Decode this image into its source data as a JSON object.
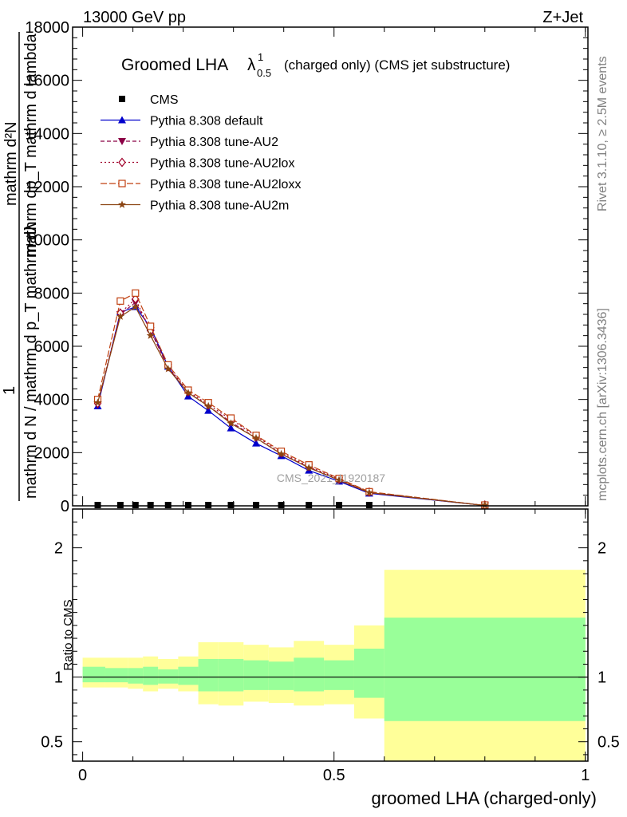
{
  "header": {
    "left": "13000 GeV pp",
    "right": "Z+Jet",
    "side_top": "Rivet 3.1.10, ≥ 2.5M events",
    "side_bottom": "mcplots.cern.ch [arXiv:1306.3436]",
    "watermark": "CMS_2021_I1920187"
  },
  "main_title": {
    "prefix": "Groomed LHA",
    "lambda": "λ",
    "sup": "1",
    "sub": "0.5",
    "suffix": "(charged only) (CMS jet substructure)"
  },
  "y_label": {
    "top": "mathrm d²N",
    "bottom_num": "1",
    "bottom_den": "mathrm d N / mathrm d p_T mathrm dλ",
    "overlay": "mathrm dp_T mathrm d lambda"
  },
  "ratio_ylabel": "Ratio to CMS",
  "xlabel": "groomed LHA (charged-only)",
  "colors": {
    "cms": "#000000",
    "default": "#0000cc",
    "au2": "#8b0045",
    "au2lox": "#a0002a",
    "au2loxx": "#c04010",
    "au2m": "#8b4513",
    "band_outer": "#ffff99",
    "band_inner": "#99ff99"
  },
  "chart_data": [
    {
      "type": "line",
      "xlim": [
        -0.02,
        1.005
      ],
      "ylim": [
        0,
        18000
      ],
      "y_ticks": [
        0,
        2000,
        4000,
        6000,
        8000,
        10000,
        12000,
        14000,
        16000,
        18000
      ],
      "y_tick_labels": [
        "0",
        "2000",
        "4000",
        "6000",
        "8000",
        "10000",
        "12000",
        "14000",
        "16000",
        "18000"
      ],
      "x": [
        0.03,
        0.075,
        0.105,
        0.135,
        0.17,
        0.21,
        0.25,
        0.295,
        0.345,
        0.395,
        0.45,
        0.51,
        0.57,
        0.8
      ],
      "series": [
        {
          "name": "CMS",
          "marker": "square",
          "values": [
            10,
            15,
            20,
            20,
            15,
            10,
            10,
            8,
            8,
            5,
            5,
            5,
            5,
            null
          ]
        },
        {
          "name": "Pythia 8.308 default",
          "marker": "triangle-up",
          "values": [
            3750,
            7280,
            7480,
            6710,
            5240,
            4120,
            3580,
            2920,
            2350,
            1880,
            1330,
            920,
            470,
            15
          ]
        },
        {
          "name": "Pythia 8.308 tune-AU2",
          "marker": "triangle-down",
          "values": [
            3800,
            7200,
            7650,
            6600,
            5200,
            4250,
            3750,
            3150,
            2550,
            1950,
            1450,
            960,
            490,
            12
          ]
        },
        {
          "name": "Pythia 8.308 tune-AU2lox",
          "marker": "diamond",
          "values": [
            3850,
            7250,
            7780,
            6580,
            5230,
            4300,
            3800,
            3250,
            2620,
            2000,
            1480,
            1000,
            520,
            12
          ]
        },
        {
          "name": "Pythia 8.308 tune-AU2loxx",
          "marker": "open-square",
          "values": [
            4000,
            7700,
            8000,
            6750,
            5300,
            4350,
            3880,
            3300,
            2650,
            2050,
            1540,
            1030,
            530,
            12
          ]
        },
        {
          "name": "Pythia 8.308 tune-AU2m",
          "marker": "star",
          "values": [
            3880,
            7120,
            7480,
            6400,
            5150,
            4250,
            3750,
            3100,
            2550,
            1950,
            1430,
            970,
            500,
            12
          ]
        }
      ]
    },
    {
      "type": "area",
      "xlim": [
        -0.02,
        1.005
      ],
      "ylim": [
        0.35,
        2.3
      ],
      "y_ticks": [
        0.5,
        1,
        2
      ],
      "y_tick_labels": [
        "0.5",
        "1",
        "2"
      ],
      "x_ticks": [
        0,
        0.5,
        1
      ],
      "x_tick_labels": [
        "0",
        "0.5",
        "1"
      ],
      "bin_edges": [
        0,
        0.045,
        0.09,
        0.12,
        0.15,
        0.19,
        0.23,
        0.27,
        0.32,
        0.37,
        0.42,
        0.48,
        0.54,
        0.6,
        1.0
      ],
      "outer_upper": [
        1.15,
        1.15,
        1.15,
        1.16,
        1.14,
        1.16,
        1.27,
        1.27,
        1.25,
        1.23,
        1.28,
        1.25,
        1.4,
        1.83
      ],
      "outer_lower": [
        0.92,
        0.92,
        0.91,
        0.89,
        0.91,
        0.89,
        0.79,
        0.78,
        0.81,
        0.8,
        0.78,
        0.79,
        0.68,
        0.35
      ],
      "inner_upper": [
        1.08,
        1.07,
        1.07,
        1.08,
        1.06,
        1.08,
        1.14,
        1.14,
        1.13,
        1.12,
        1.15,
        1.13,
        1.22,
        1.46
      ],
      "inner_lower": [
        0.96,
        0.96,
        0.95,
        0.94,
        0.95,
        0.94,
        0.89,
        0.89,
        0.9,
        0.9,
        0.89,
        0.9,
        0.84,
        0.66
      ],
      "reference": 1
    }
  ]
}
